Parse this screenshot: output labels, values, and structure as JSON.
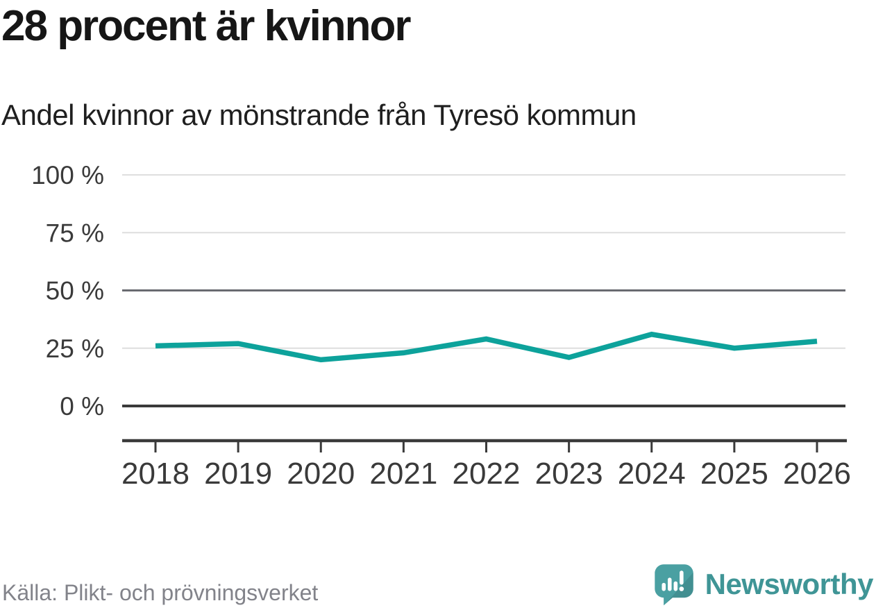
{
  "header": {
    "title": "28 procent är kvinnor",
    "subtitle": "Andel kvinnor av mönstrande från Tyresö kommun"
  },
  "chart_data": {
    "type": "line",
    "title": "28 procent är kvinnor",
    "subtitle": "Andel kvinnor av mönstrande från Tyresö kommun",
    "categories": [
      "2018",
      "2019",
      "2020",
      "2021",
      "2022",
      "2023",
      "2024",
      "2025",
      "2026"
    ],
    "series": [
      {
        "name": "Andel kvinnor av mönstrande",
        "values": [
          26,
          27,
          20,
          23,
          29,
          21,
          31,
          25,
          28
        ]
      }
    ],
    "unit": "%",
    "xlabel": "",
    "ylabel": "",
    "ylim": [
      0,
      100
    ],
    "yticks": [
      100,
      75,
      50,
      25,
      0
    ],
    "ytick_labels": [
      "100 %",
      "75 %",
      "50 %",
      "25 %",
      "0 %"
    ],
    "grid": "horizontal",
    "legend": "none",
    "line_color": "#0da29b"
  },
  "colors": {
    "line": "#0da29b",
    "grid_light": "#dedede",
    "grid_mid": "#696a70",
    "grid_zero": "#3a3a3a",
    "axis": "#3a3a3a",
    "tick_label": "#3a3a3a",
    "source_text": "#82838a",
    "brand_teal": "#3f9596",
    "logo_bubble": "#4aa0a2"
  },
  "footer": {
    "source": "Källa: Plikt- och prövningsverket",
    "brand_name": "Newsworthy"
  }
}
